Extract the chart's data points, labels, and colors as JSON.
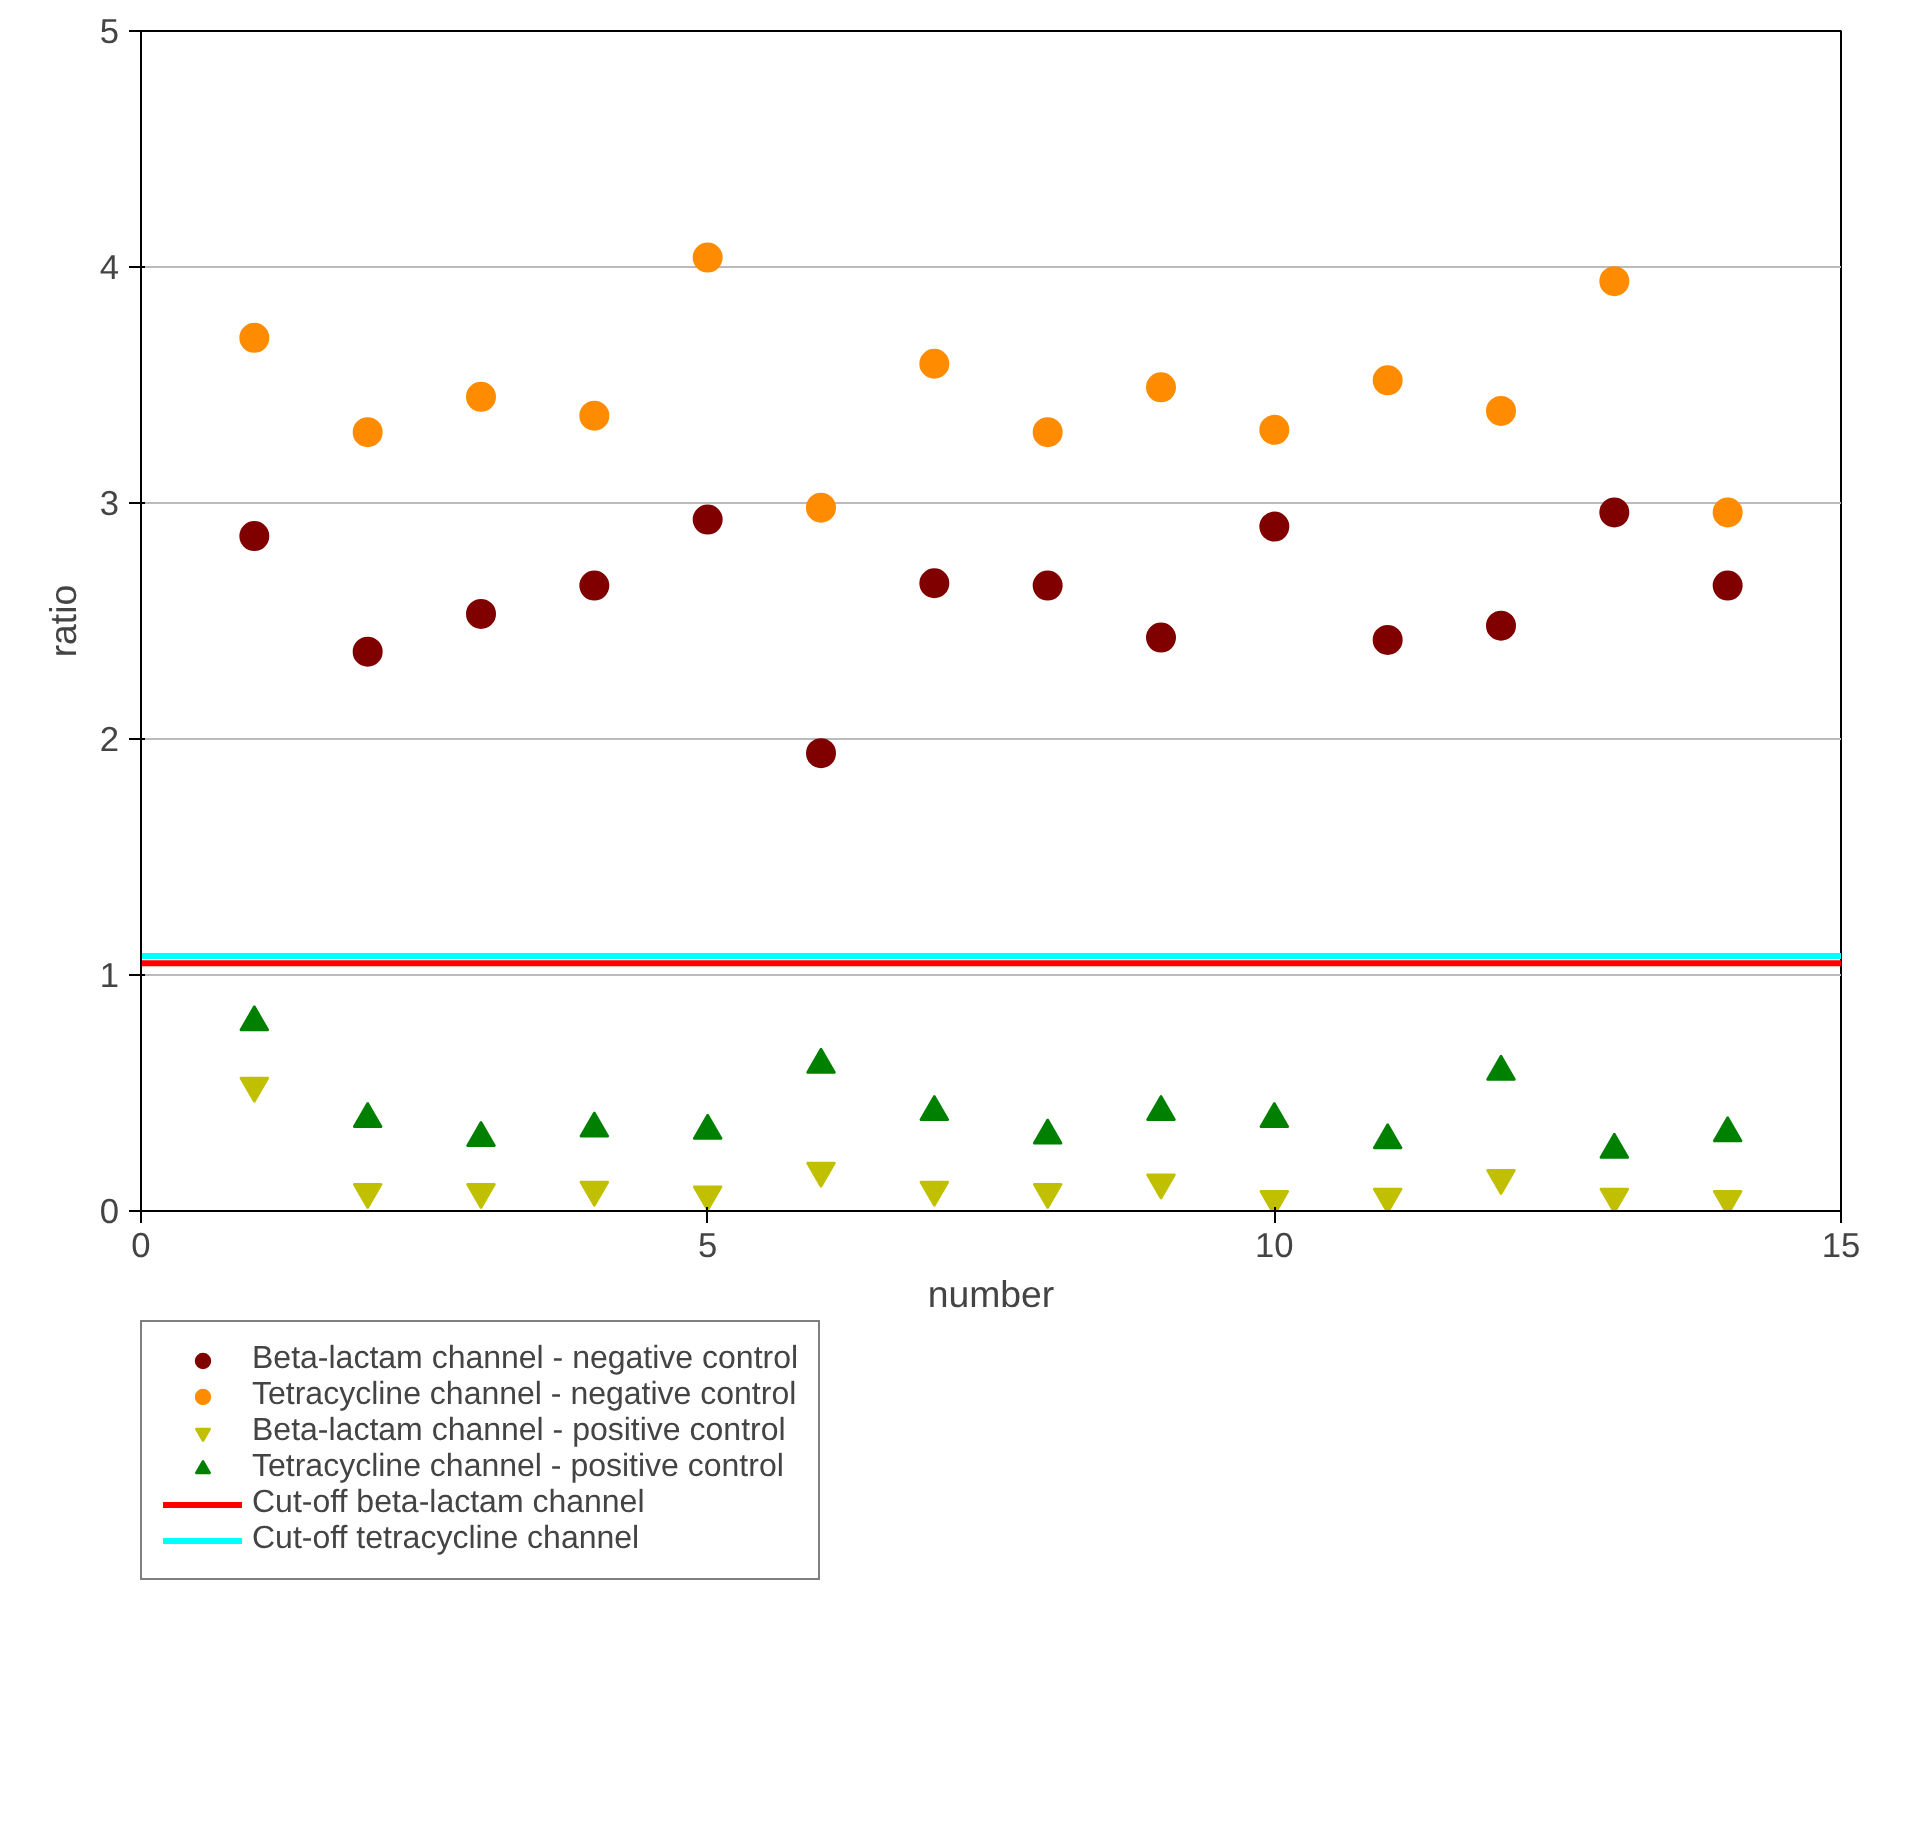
{
  "chart_data": {
    "type": "scatter",
    "xlabel": "number",
    "ylabel": "ratio",
    "x": [
      1,
      2,
      3,
      4,
      5,
      6,
      7,
      8,
      9,
      10,
      11,
      12,
      13,
      14
    ],
    "xlim": [
      0,
      15
    ],
    "xticks": [
      0,
      5,
      10,
      15
    ],
    "ylim": [
      0,
      5
    ],
    "yticks": [
      0,
      1,
      2,
      3,
      4,
      5
    ],
    "grid": "y",
    "legend": "bottom left",
    "series": [
      {
        "name": "Beta-lactam channel - negative control",
        "color": "#800000",
        "marker": "circle",
        "values": [
          2.86,
          2.37,
          2.53,
          2.65,
          2.93,
          1.94,
          2.66,
          2.65,
          2.43,
          2.9,
          2.42,
          2.48,
          2.96,
          2.65
        ]
      },
      {
        "name": "Tetracycline channel - negative control",
        "color": "#ff8c00",
        "marker": "circle",
        "values": [
          3.7,
          3.3,
          3.45,
          3.37,
          4.04,
          2.98,
          3.59,
          3.3,
          3.49,
          3.31,
          3.52,
          3.39,
          3.94,
          2.96
        ]
      },
      {
        "name": "Beta-lactam channel - positive control",
        "color": "#c0c000",
        "marker": "triangle_down",
        "values": [
          0.53,
          0.08,
          0.08,
          0.09,
          0.07,
          0.17,
          0.09,
          0.08,
          0.12,
          0.05,
          0.06,
          0.14,
          0.06,
          0.05
        ]
      },
      {
        "name": "Tetracycline channel - positive control",
        "color": "#008000",
        "marker": "triangle",
        "values": [
          0.8,
          0.39,
          0.31,
          0.35,
          0.34,
          0.62,
          0.42,
          0.32,
          0.42,
          0.39,
          0.3,
          0.59,
          0.26,
          0.33
        ]
      }
    ],
    "ref_lines": [
      {
        "axis": "y",
        "value": 1.05,
        "label": "Cut-off beta-lactam channel",
        "color": "#ff0000"
      },
      {
        "axis": "y",
        "value": 1.08,
        "label": "Cut-off tetracycline channel",
        "color": "#00ffff"
      }
    ]
  }
}
